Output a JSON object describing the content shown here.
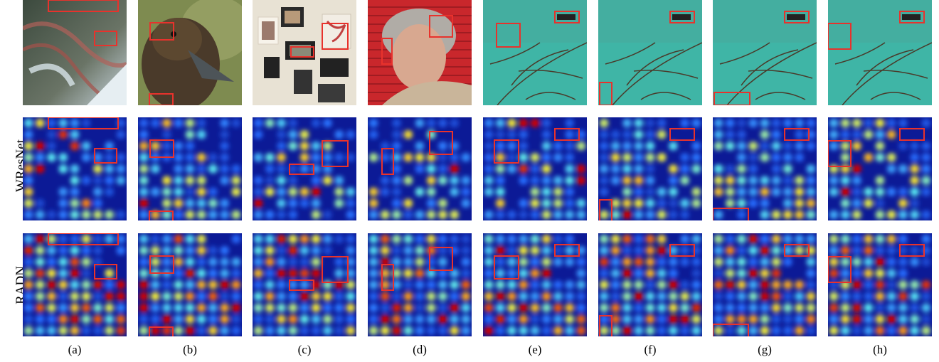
{
  "rows": [
    {
      "key": "image",
      "label": ""
    },
    {
      "key": "wresnet",
      "label": "WResNet"
    },
    {
      "key": "radn",
      "label": "RADN"
    }
  ],
  "columns": [
    {
      "label": "(a)",
      "scene": "carved-tiles"
    },
    {
      "label": "(b)",
      "scene": "duck"
    },
    {
      "label": "(c)",
      "scene": "picture-frames"
    },
    {
      "label": "(d)",
      "scene": "old-woman"
    },
    {
      "label": "(e)",
      "scene": "turquoise-water-branches"
    },
    {
      "label": "(f)",
      "scene": "turquoise-water-branches"
    },
    {
      "label": "(g)",
      "scene": "turquoise-water-branches"
    },
    {
      "label": "(h)",
      "scene": "turquoise-water-branches"
    }
  ],
  "colors": {
    "highlight_box": "#e8322c",
    "heat_low": "#0a1a9a",
    "heat_high": "#d40000"
  }
}
